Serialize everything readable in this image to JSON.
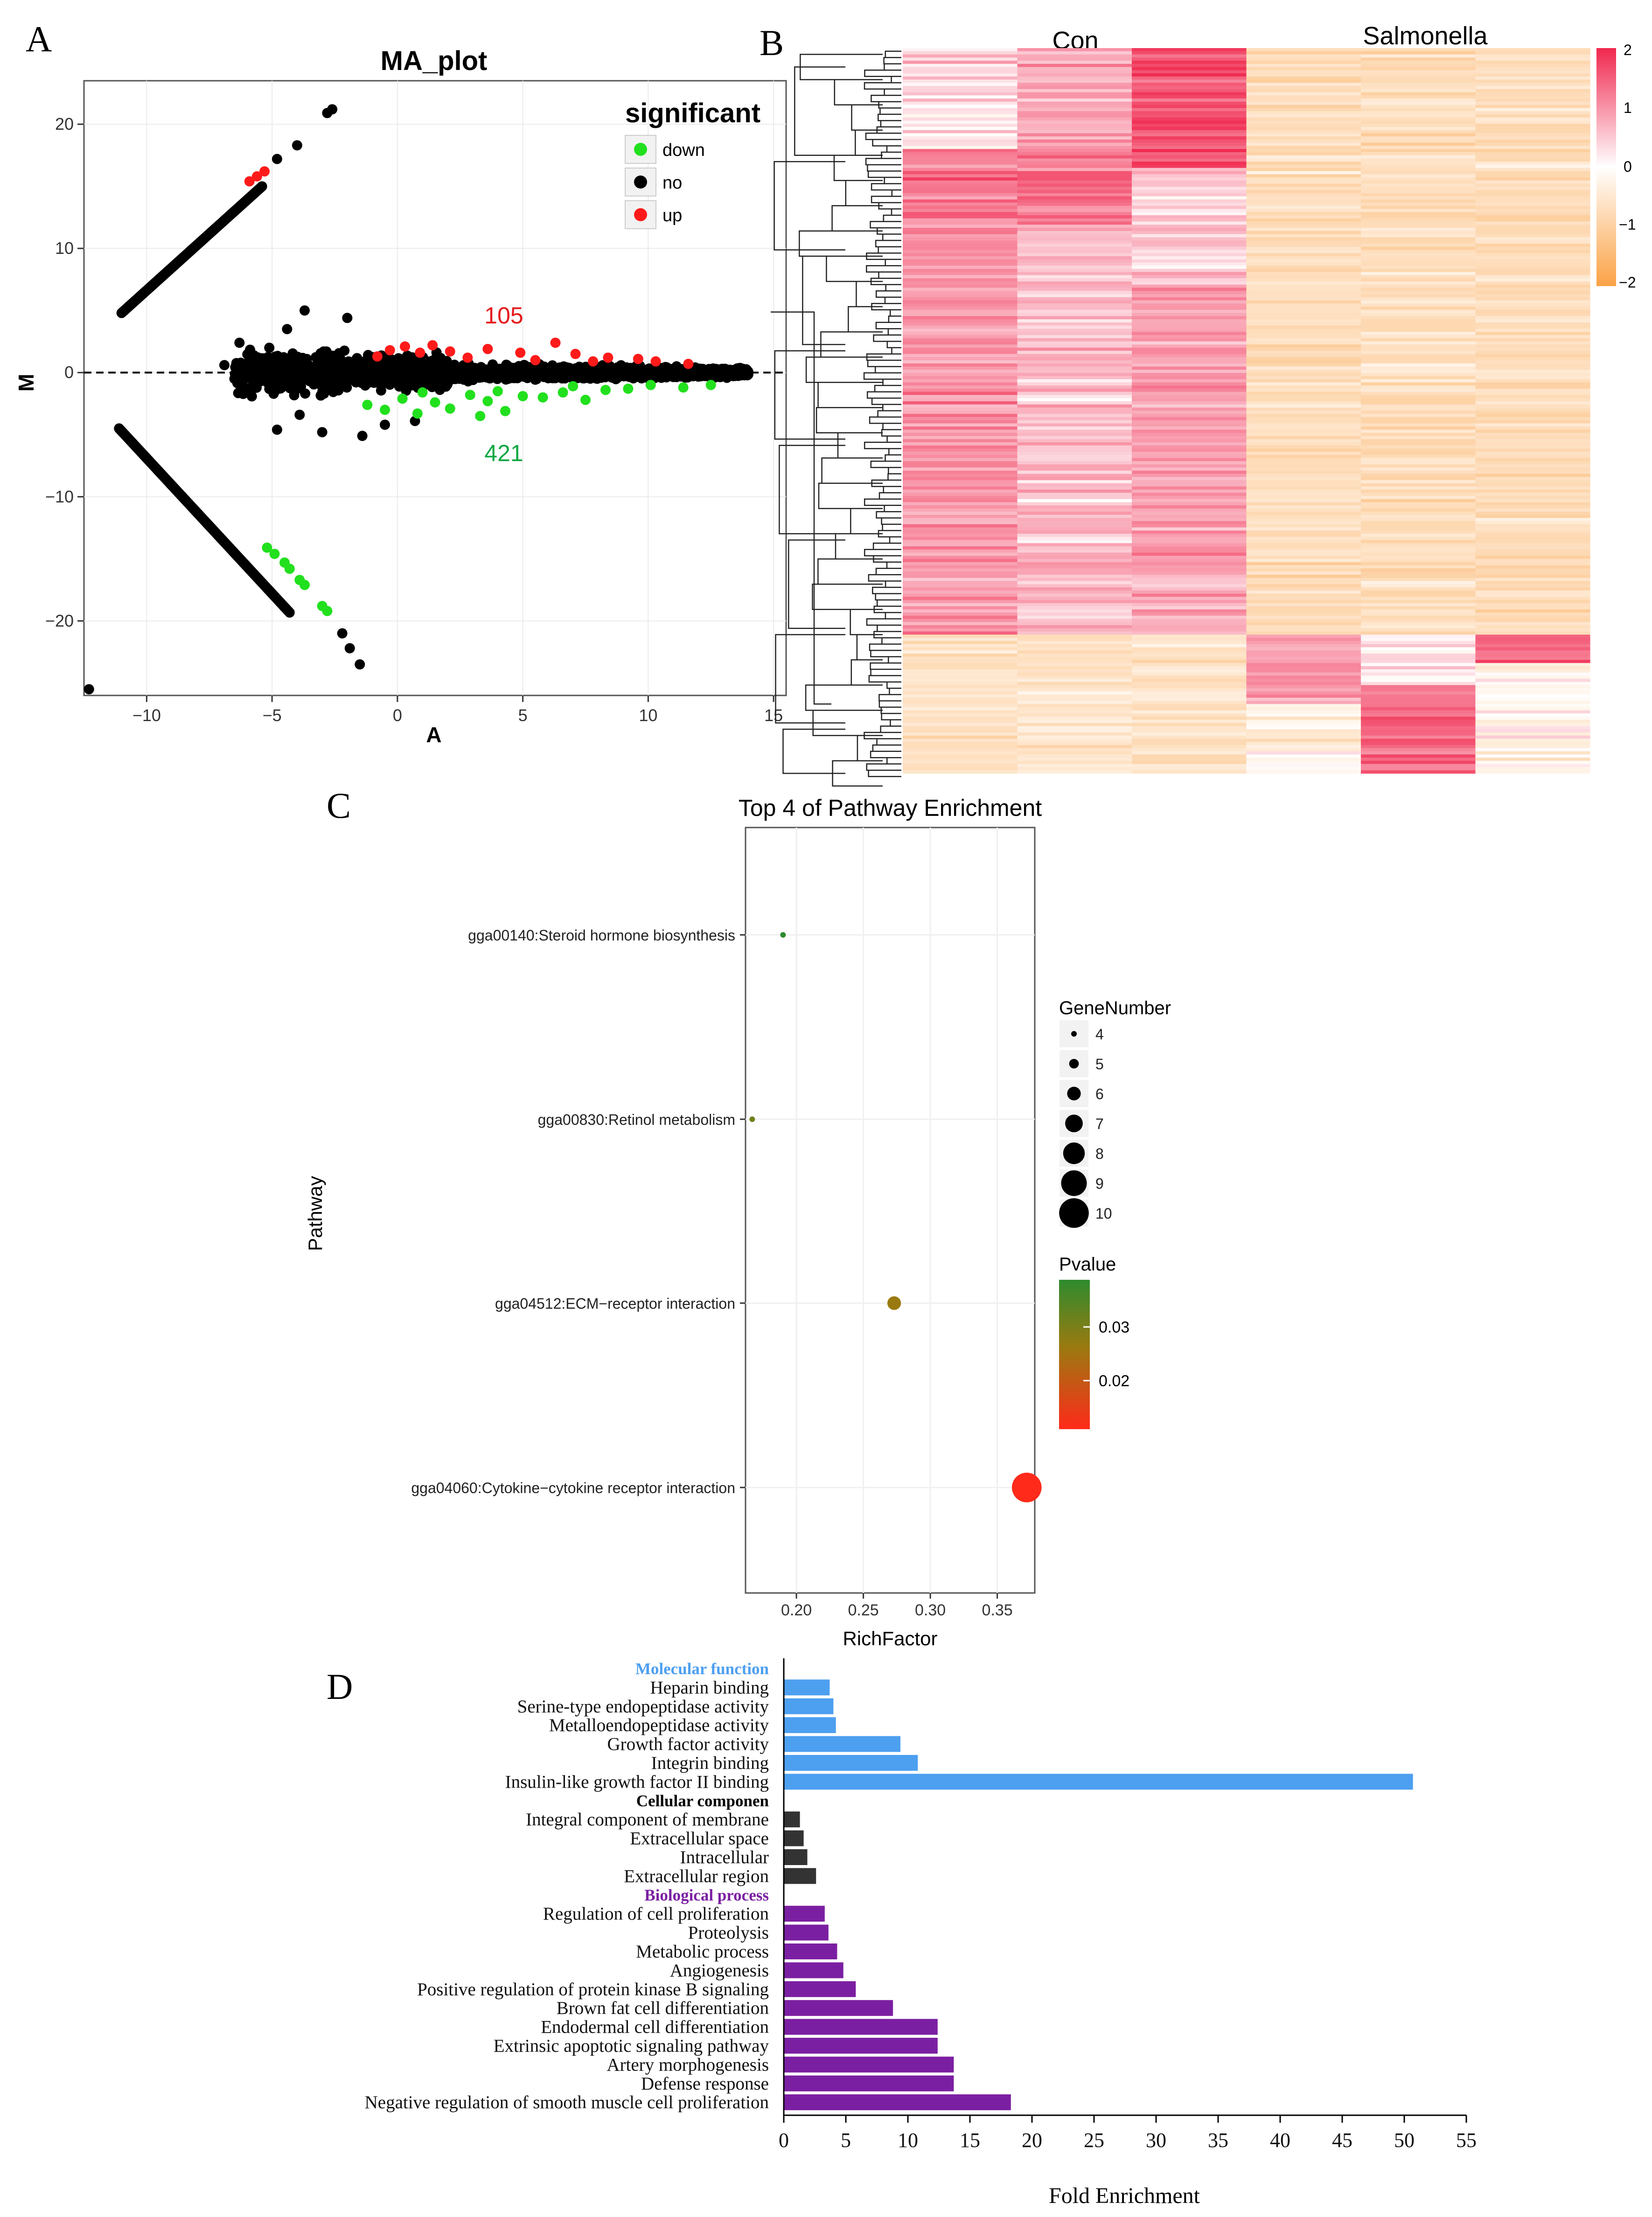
{
  "panels": {
    "a": {
      "letter": "A",
      "title": "MA_plot",
      "xlabel": "A",
      "ylabel": "M",
      "xlim": [
        -12.5,
        15.5
      ],
      "ylim": [
        -26,
        23.5
      ],
      "xticks": [
        -10,
        -5,
        0,
        5,
        10,
        15
      ],
      "yticks": [
        20,
        10,
        0,
        -10,
        -20
      ],
      "legend": {
        "title": "significant",
        "items": [
          {
            "label": "down",
            "color": "#22e01e"
          },
          {
            "label": "no",
            "color": "#000000"
          },
          {
            "label": "up",
            "color": "#ff1a1a"
          }
        ]
      },
      "annotations": {
        "up_count": "105",
        "down_count": "421",
        "up_color": "#e41a1c",
        "down_color": "#11a843"
      }
    },
    "b": {
      "letter": "B",
      "group_labels": [
        "Con",
        "Salmonella"
      ],
      "colorbar_ticks": [
        "2",
        "1",
        "0",
        "−1",
        "−2"
      ],
      "colors": {
        "high": "#f0284e",
        "mid": "#ffffff",
        "low": "#fba245"
      }
    },
    "c": {
      "letter": "C",
      "title": "Top 4 of Pathway Enrichment",
      "xlabel": "RichFactor",
      "ylabel": "Pathway",
      "xticks": [
        "0.20",
        "0.25",
        "0.30",
        "0.35"
      ],
      "size_legend_title": "GeneNumber",
      "size_legend_items": [
        "4",
        "5",
        "6",
        "7",
        "8",
        "9",
        "10"
      ],
      "color_legend_title": "Pvalue",
      "color_legend_ticks": [
        "0.03",
        "0.02"
      ]
    },
    "d": {
      "letter": "D",
      "xlabel": "Fold Enrichment",
      "xticks": [
        "0",
        "5",
        "10",
        "15",
        "20",
        "25",
        "30",
        "35",
        "40",
        "45",
        "50",
        "55"
      ]
    }
  },
  "chart_data": [
    {
      "type": "scatter",
      "title": "MA_plot",
      "xlabel": "A",
      "ylabel": "M",
      "xlim": [
        -12.5,
        15.5
      ],
      "ylim": [
        -26,
        23.5
      ],
      "series": [
        {
          "name": "up",
          "count_label": "105",
          "points": [
            [
              -5.9,
              15.4
            ],
            [
              -5.6,
              15.8
            ],
            [
              -5.3,
              16.2
            ],
            [
              -0.3,
              1.8
            ],
            [
              0.3,
              2.1
            ],
            [
              0.9,
              1.6
            ],
            [
              1.4,
              2.2
            ],
            [
              2.1,
              1.7
            ],
            [
              3.6,
              1.9
            ],
            [
              4.9,
              1.6
            ],
            [
              6.3,
              2.4
            ],
            [
              7.1,
              1.5
            ],
            [
              8.4,
              1.2
            ],
            [
              9.6,
              1.1
            ],
            [
              10.3,
              0.9
            ],
            [
              11.6,
              0.7
            ],
            [
              -0.8,
              1.3
            ],
            [
              2.8,
              1.2
            ],
            [
              5.5,
              1.0
            ],
            [
              7.8,
              0.9
            ]
          ]
        },
        {
          "name": "down",
          "count_label": "421",
          "points": [
            [
              -5.2,
              -14.1
            ],
            [
              -4.9,
              -14.6
            ],
            [
              -4.5,
              -15.3
            ],
            [
              -4.3,
              -15.8
            ],
            [
              -3.9,
              -16.7
            ],
            [
              -3.7,
              -17.1
            ],
            [
              -3.0,
              -18.8
            ],
            [
              -2.8,
              -19.2
            ],
            [
              -1.2,
              -2.6
            ],
            [
              -0.5,
              -3.0
            ],
            [
              0.2,
              -2.1
            ],
            [
              0.8,
              -3.3
            ],
            [
              1.5,
              -2.4
            ],
            [
              2.1,
              -2.9
            ],
            [
              2.9,
              -1.8
            ],
            [
              3.6,
              -2.3
            ],
            [
              4.3,
              -3.1
            ],
            [
              5.0,
              -1.9
            ],
            [
              5.8,
              -2.0
            ],
            [
              6.6,
              -1.6
            ],
            [
              7.5,
              -2.2
            ],
            [
              8.3,
              -1.4
            ],
            [
              9.2,
              -1.3
            ],
            [
              10.1,
              -1.0
            ],
            [
              11.4,
              -1.2
            ],
            [
              12.5,
              -1.0
            ],
            [
              1.0,
              -1.6
            ],
            [
              4.0,
              -1.5
            ],
            [
              7.0,
              -1.1
            ],
            [
              3.3,
              -3.5
            ]
          ]
        }
      ]
    },
    {
      "type": "heatmap",
      "columns": [
        "Con",
        "Con",
        "Con",
        "Salmonella",
        "Salmonella",
        "Salmonella"
      ],
      "color_scale": [
        -2,
        2
      ]
    },
    {
      "type": "scatter",
      "title": "Top 4 of Pathway Enrichment",
      "xlabel": "RichFactor",
      "ylabel": "Pathway",
      "xlim": [
        0.162,
        0.378
      ],
      "categories": [
        "gga00140:Steroid hormone biosynthesis",
        "gga00830:Retinol metabolism",
        "gga04512:ECM−receptor interaction",
        "gga04060:Cytokine−cytokine receptor interaction"
      ],
      "richfactor": [
        0.19,
        0.167,
        0.273,
        0.372
      ],
      "gene_number": [
        4,
        4,
        6,
        10
      ],
      "pvalue": [
        0.038,
        0.03,
        0.025,
        0.012
      ]
    },
    {
      "type": "bar",
      "orientation": "horizontal",
      "xlabel": "Fold Enrichment",
      "xlim": [
        0,
        55
      ],
      "groups": [
        {
          "name": "Molecular function",
          "color": "#4d9ff0",
          "label_color": "#4d9ff0",
          "categories": [
            "Heparin binding",
            "Serine-type endopeptidase activity",
            "Metalloendopeptidase activity",
            "Growth factor activity",
            "Integrin binding",
            "Insulin-like growth factor II binding"
          ],
          "values": [
            3.7,
            4.0,
            4.2,
            9.4,
            10.8,
            50.7
          ]
        },
        {
          "name": "Cellular componen",
          "color": "#333333",
          "label_color": "#000000",
          "categories": [
            "Integral component of membrane",
            "Extracellular space",
            "Intracellular",
            "Extracellular region"
          ],
          "values": [
            1.3,
            1.6,
            1.9,
            2.6
          ]
        },
        {
          "name": "Biological process",
          "color": "#7b1fa2",
          "label_color": "#7b1fa2",
          "categories": [
            "Regulation of cell proliferation",
            "Proteolysis",
            "Metabolic process",
            "Angiogenesis",
            "Positive regulation of protein kinase B signaling",
            "Brown fat cell differentiation",
            "Endodermal cell differentiation",
            "Extrinsic apoptotic signaling pathway",
            "Artery morphogenesis",
            "Defense response",
            "Negative regulation of smooth muscle cell proliferation"
          ],
          "values": [
            3.3,
            3.6,
            4.3,
            4.8,
            5.8,
            8.8,
            12.4,
            12.4,
            13.7,
            13.7,
            18.3
          ]
        }
      ]
    }
  ]
}
